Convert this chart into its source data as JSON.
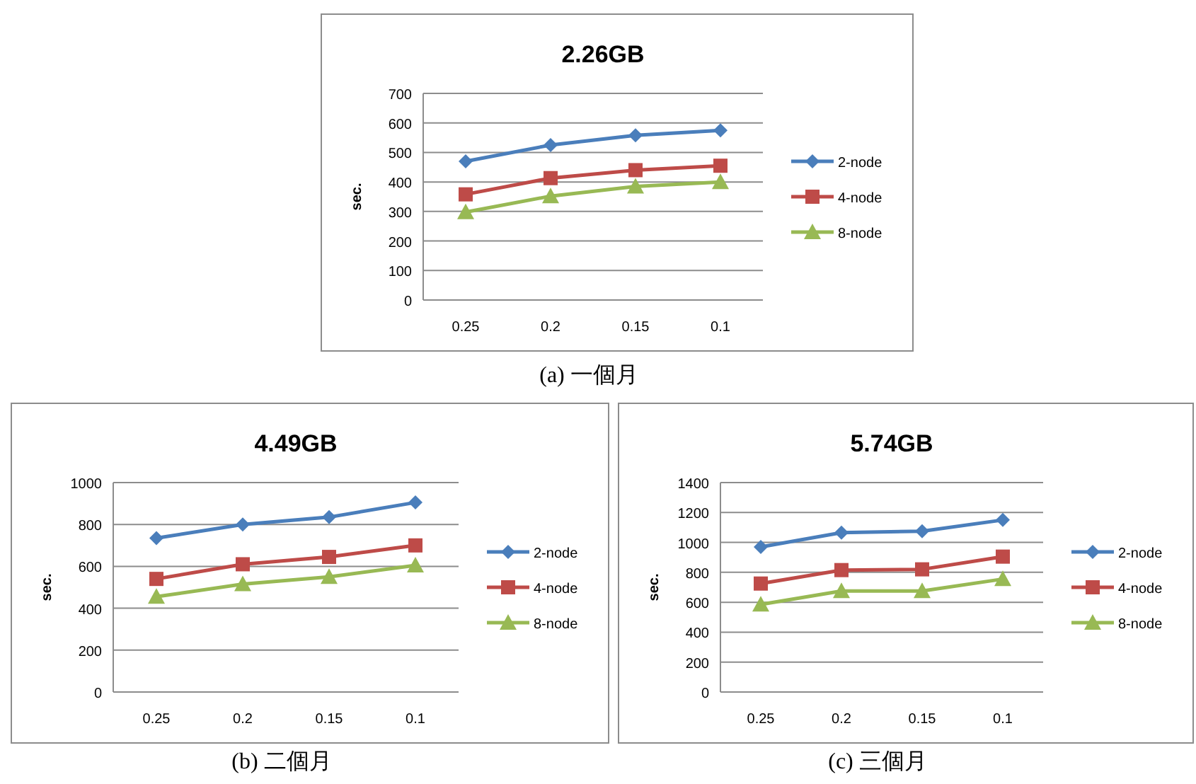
{
  "chart_data": [
    {
      "type": "line",
      "title": "2.26GB",
      "ylabel": "sec.",
      "categories": [
        "0.25",
        "0.2",
        "0.15",
        "0.1"
      ],
      "ylim": [
        0,
        700
      ],
      "yticks": [
        0,
        100,
        200,
        300,
        400,
        500,
        600,
        700
      ],
      "grid": "y",
      "legend": "right",
      "annotations": [
        "(a) 一個月"
      ],
      "series": [
        {
          "name": "2-node",
          "color": "#4a7ebb",
          "marker": "diamond",
          "values": [
            470,
            525,
            558,
            575
          ]
        },
        {
          "name": "4-node",
          "color": "#be4b48",
          "marker": "square",
          "values": [
            358,
            413,
            440,
            455
          ]
        },
        {
          "name": "8-node",
          "color": "#98b954",
          "marker": "triangle",
          "values": [
            298,
            352,
            385,
            400
          ]
        }
      ]
    },
    {
      "type": "line",
      "title": "4.49GB",
      "ylabel": "sec.",
      "categories": [
        "0.25",
        "0.2",
        "0.15",
        "0.1"
      ],
      "ylim": [
        0,
        1000
      ],
      "yticks": [
        0,
        200,
        400,
        600,
        800,
        1000
      ],
      "grid": "y",
      "legend": "right",
      "annotations": [
        "(b) 二個月"
      ],
      "series": [
        {
          "name": "2-node",
          "color": "#4a7ebb",
          "marker": "diamond",
          "values": [
            735,
            800,
            835,
            905
          ]
        },
        {
          "name": "4-node",
          "color": "#be4b48",
          "marker": "square",
          "values": [
            540,
            610,
            645,
            700
          ]
        },
        {
          "name": "8-node",
          "color": "#98b954",
          "marker": "triangle",
          "values": [
            455,
            515,
            550,
            605
          ]
        }
      ]
    },
    {
      "type": "line",
      "title": "5.74GB",
      "ylabel": "sec.",
      "categories": [
        "0.25",
        "0.2",
        "0.15",
        "0.1"
      ],
      "ylim": [
        0,
        1400
      ],
      "yticks": [
        0,
        200,
        400,
        600,
        800,
        1000,
        1200,
        1400
      ],
      "grid": "y",
      "legend": "right",
      "annotations": [
        "(c) 三個月"
      ],
      "series": [
        {
          "name": "2-node",
          "color": "#4a7ebb",
          "marker": "diamond",
          "values": [
            970,
            1065,
            1075,
            1150
          ]
        },
        {
          "name": "4-node",
          "color": "#be4b48",
          "marker": "square",
          "values": [
            725,
            815,
            820,
            905
          ]
        },
        {
          "name": "8-node",
          "color": "#98b954",
          "marker": "triangle",
          "values": [
            585,
            675,
            675,
            755
          ]
        }
      ]
    }
  ]
}
